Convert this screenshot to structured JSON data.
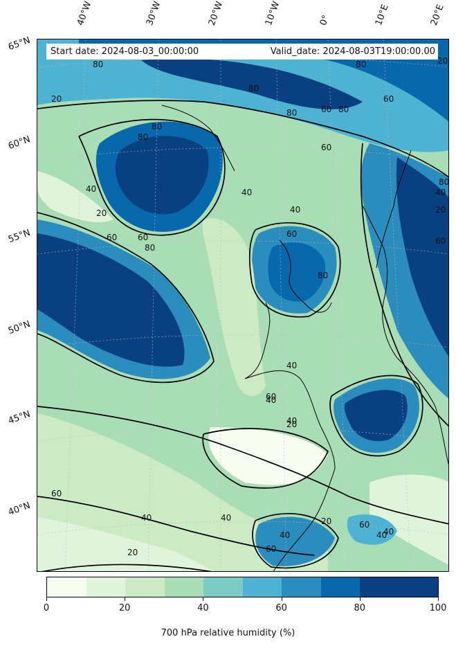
{
  "header": {
    "start_date": "Start date: 2024-08-03_00:00:00",
    "valid_date": "Valid_date: 2024-08-03T19:00:00.00"
  },
  "longitude_labels": [
    "40°W",
    "30°W",
    "20°W",
    "10°W",
    "0°",
    "10°E",
    "20°E"
  ],
  "latitude_labels": [
    "65°N",
    "60°N",
    "55°N",
    "50°N",
    "45°N",
    "40°N"
  ],
  "contour_labels": [
    "80",
    "80",
    "80",
    "60",
    "80",
    "60",
    "20",
    "80",
    "80",
    "40",
    "20",
    "60",
    "60",
    "80",
    "40",
    "40",
    "60",
    "80",
    "80",
    "20",
    "60",
    "40",
    "20",
    "40",
    "40",
    "40",
    "60",
    "20",
    "40",
    "40",
    "20",
    "60",
    "60",
    "40",
    "20",
    "40",
    "60",
    "40",
    "80",
    "60"
  ],
  "colorbar": {
    "label": "700 hPa relative humidity (%)",
    "tick_labels": [
      "0",
      "20",
      "40",
      "60",
      "80",
      "100"
    ],
    "colors": [
      "#f7fcf0",
      "#e0f3db",
      "#ccebc5",
      "#a8ddb5",
      "#7bccc4",
      "#4eb3d3",
      "#2b8cbe",
      "#0868ac",
      "#084081",
      "#084081"
    ]
  }
}
